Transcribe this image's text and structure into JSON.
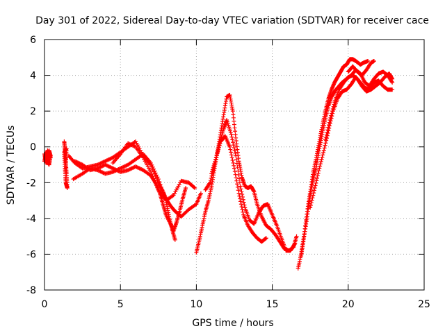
{
  "chart_data": {
    "type": "scatter",
    "title": "Day 301 of 2022, Sidereal Day-to-day VTEC variation (SDTVAR) for receiver cace",
    "xlabel": "GPS time / hours",
    "ylabel": "SDTVAR / TECUs",
    "xlim": [
      0,
      25
    ],
    "ylim": [
      -8,
      6
    ],
    "xticks": [
      0,
      5,
      10,
      15,
      20,
      25
    ],
    "yticks": [
      -8,
      -6,
      -4,
      -2,
      0,
      2,
      4,
      6
    ],
    "grid": true,
    "marker": "plus",
    "color": "#ff0000",
    "series": [
      {
        "x": [
          0.0,
          0.1,
          0.2,
          0.3,
          0.4,
          0.3,
          0.2,
          0.1,
          0.0,
          0.2,
          0.4
        ],
        "y": [
          -0.4,
          -0.9,
          -0.7,
          -0.2,
          -0.5,
          -1.0,
          -0.8,
          -0.3,
          -0.8,
          -0.2,
          -0.6
        ]
      },
      {
        "x": [
          1.3,
          1.35,
          1.4,
          1.45,
          1.5,
          1.4,
          1.35,
          1.3,
          1.45,
          1.4
        ],
        "y": [
          0.3,
          -0.2,
          -0.8,
          -1.5,
          -2.3,
          -2.0,
          -1.2,
          -0.3,
          -0.1,
          -0.9
        ]
      },
      {
        "x": [
          1.6,
          2.0,
          2.5,
          3.0,
          3.5,
          4.0,
          4.5,
          5.0,
          5.5,
          6.0,
          6.5,
          7.0,
          7.5,
          7.8,
          8.0,
          8.3,
          8.6,
          9.0,
          9.5,
          10.0,
          10.3
        ],
        "y": [
          -0.5,
          -0.9,
          -1.2,
          -1.1,
          -1.0,
          -0.8,
          -0.6,
          -0.3,
          0.0,
          0.3,
          -0.5,
          -1.0,
          -2.0,
          -2.5,
          -2.9,
          -3.3,
          -3.6,
          -3.9,
          -3.5,
          -3.2,
          -2.6
        ]
      },
      {
        "x": [
          2.0,
          2.5,
          3.0,
          3.5,
          4.0,
          4.5,
          5.0,
          5.5,
          6.0,
          6.5,
          7.0,
          7.3,
          7.6,
          7.8,
          8.0,
          8.3,
          8.5,
          8.7,
          8.9,
          9.1,
          9.3
        ],
        "y": [
          -0.8,
          -1.0,
          -1.3,
          -1.2,
          -1.0,
          -1.2,
          -1.4,
          -1.3,
          -1.1,
          -1.3,
          -1.6,
          -2.0,
          -2.6,
          -3.2,
          -3.8,
          -4.3,
          -4.7,
          -4.2,
          -3.6,
          -2.9,
          -2.3
        ]
      },
      {
        "x": [
          1.9,
          2.5,
          3.0,
          3.5,
          4.0,
          4.5,
          5.0,
          5.5,
          6.0,
          6.5,
          7.0,
          7.5,
          8.0,
          8.2,
          8.4,
          8.6
        ],
        "y": [
          -1.8,
          -1.5,
          -1.2,
          -1.3,
          -1.5,
          -1.4,
          -1.2,
          -1.0,
          -0.7,
          -0.4,
          -0.9,
          -1.8,
          -3.0,
          -3.9,
          -4.6,
          -5.2
        ]
      },
      {
        "x": [
          4.5,
          5.0,
          5.5,
          6.0,
          6.5,
          7.0,
          7.5,
          8.0,
          8.5,
          9.0,
          9.5,
          9.9
        ],
        "y": [
          -0.9,
          -0.4,
          0.2,
          0.0,
          -0.6,
          -1.4,
          -2.4,
          -3.0,
          -2.7,
          -1.9,
          -2.0,
          -2.3
        ]
      },
      {
        "x": [
          10.0,
          10.2,
          10.4,
          10.6,
          10.8,
          11.0,
          11.2,
          11.4,
          11.6,
          11.8,
          12.0,
          12.2,
          12.4,
          12.6,
          12.8,
          13.0,
          13.2,
          13.4,
          13.6,
          13.8,
          14.0,
          14.3,
          14.6,
          14.9,
          15.2,
          15.5,
          15.8,
          16.1,
          16.4,
          16.6
        ],
        "y": [
          -5.9,
          -5.2,
          -4.4,
          -3.6,
          -3.0,
          -2.2,
          -1.2,
          -0.2,
          0.8,
          1.8,
          2.8,
          2.9,
          2.0,
          0.5,
          -0.8,
          -1.7,
          -2.2,
          -2.3,
          -2.2,
          -2.5,
          -3.2,
          -3.9,
          -4.4,
          -4.6,
          -4.9,
          -5.3,
          -5.7,
          -5.8,
          -5.6,
          -5.0
        ]
      },
      {
        "x": [
          10.6,
          10.9,
          11.2,
          11.5,
          11.8,
          12.0,
          12.3,
          12.6,
          12.9,
          13.2,
          13.5,
          13.8,
          14.1,
          14.4,
          14.7,
          15.0,
          15.3,
          15.6,
          15.9,
          16.2,
          16.5
        ],
        "y": [
          -2.4,
          -2.0,
          -1.0,
          0.1,
          1.0,
          1.5,
          0.7,
          -0.5,
          -2.2,
          -3.4,
          -4.1,
          -4.3,
          -3.7,
          -3.3,
          -3.2,
          -3.8,
          -4.4,
          -5.1,
          -5.8,
          -5.8,
          -5.4
        ]
      },
      {
        "x": [
          11.0,
          11.3,
          11.6,
          11.9,
          12.2,
          12.5,
          12.8,
          13.1,
          13.4,
          13.7,
          14.0,
          14.3,
          14.6
        ],
        "y": [
          -1.5,
          -0.6,
          0.3,
          0.6,
          0.0,
          -1.2,
          -2.6,
          -3.8,
          -4.4,
          -4.8,
          -5.1,
          -5.3,
          -5.1
        ]
      },
      {
        "x": [
          16.7,
          16.9,
          17.1,
          17.3,
          17.5,
          17.7,
          17.9,
          18.1,
          18.3,
          18.5,
          18.7,
          18.9,
          19.1,
          19.3,
          19.5,
          19.7,
          19.9,
          20.1,
          20.3,
          20.5,
          20.8,
          21.0,
          21.3
        ],
        "y": [
          -6.8,
          -6.0,
          -4.9,
          -3.6,
          -2.5,
          -1.4,
          -0.6,
          0.3,
          1.2,
          2.0,
          2.7,
          3.2,
          3.6,
          3.9,
          4.2,
          4.5,
          4.6,
          4.9,
          4.9,
          4.8,
          4.6,
          4.7,
          4.8
        ]
      },
      {
        "x": [
          16.9,
          17.1,
          17.3,
          17.5,
          17.7,
          17.9,
          18.1,
          18.3,
          18.5,
          18.7,
          18.9,
          19.1,
          19.3,
          19.6,
          19.9,
          20.2,
          20.5,
          20.8,
          21.1,
          21.4,
          21.7,
          22.0,
          22.3,
          22.6,
          22.9
        ],
        "y": [
          -6.1,
          -5.0,
          -3.9,
          -2.7,
          -1.8,
          -1.1,
          -0.1,
          0.8,
          1.6,
          2.3,
          2.8,
          3.1,
          3.3,
          3.6,
          3.8,
          4.0,
          4.3,
          4.1,
          3.6,
          3.4,
          3.8,
          4.1,
          4.2,
          4.0,
          3.6
        ]
      },
      {
        "x": [
          17.5,
          17.8,
          18.1,
          18.4,
          18.7,
          19.0,
          19.3,
          19.6,
          19.9,
          20.2,
          20.5,
          20.8,
          21.1,
          21.4,
          21.7,
          22.0,
          22.3,
          22.6,
          22.9
        ],
        "y": [
          -3.4,
          -2.3,
          -1.2,
          -0.2,
          0.9,
          2.0,
          2.7,
          3.1,
          3.2,
          3.5,
          3.9,
          3.6,
          3.3,
          3.2,
          3.6,
          3.7,
          3.4,
          3.2,
          3.2
        ]
      },
      {
        "x": [
          18.5,
          18.8,
          19.1,
          19.4,
          19.7,
          20.0,
          20.3,
          20.6,
          20.9,
          21.2,
          21.5,
          21.8,
          22.1,
          22.4,
          22.7,
          22.9
        ],
        "y": [
          0.4,
          1.5,
          2.5,
          3.2,
          3.6,
          3.9,
          4.0,
          3.8,
          3.4,
          3.1,
          3.2,
          3.4,
          3.6,
          3.9,
          4.1,
          3.8
        ]
      },
      {
        "x": [
          20.0,
          20.3,
          20.6,
          20.9,
          21.2,
          21.5,
          21.7
        ],
        "y": [
          4.2,
          4.5,
          4.2,
          4.0,
          4.3,
          4.7,
          4.8
        ]
      }
    ]
  }
}
